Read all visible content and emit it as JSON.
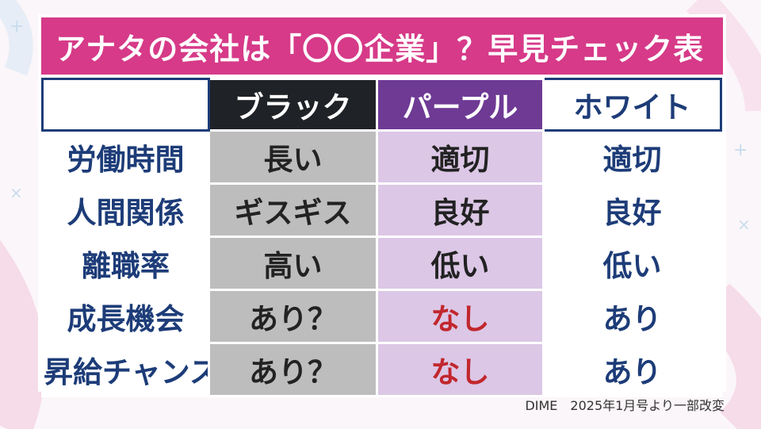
{
  "title": "アナタの会社は「〇〇企業」？早見チェック表",
  "columns": {
    "empty": "",
    "black": "ブラック",
    "purple": "パープル",
    "white": "ホワイト"
  },
  "rows": [
    {
      "label": "労働時間",
      "black": "長い",
      "purple": "適切",
      "white": "適切"
    },
    {
      "label": "人間関係",
      "black": "ギスギス",
      "purple": "良好",
      "white": "良好"
    },
    {
      "label": "離職率",
      "black": "高い",
      "purple": "低い",
      "white": "低い"
    },
    {
      "label": "成長機会",
      "black": "あり？",
      "purple": "なし",
      "white": "あり"
    },
    {
      "label": "昇給チャンス",
      "black": "あり？",
      "purple": "なし",
      "white": "あり"
    }
  ],
  "source": "DIME　2025年1月号より一部改変",
  "colors": {
    "title_bg": "#d63a88",
    "black_header": "#1f2226",
    "purple_header": "#6e3a94",
    "black_cell": "#bdbdbd",
    "purple_cell": "#dcc7e6",
    "navy_text": "#1d3c78",
    "red_text": "#c1272d"
  }
}
